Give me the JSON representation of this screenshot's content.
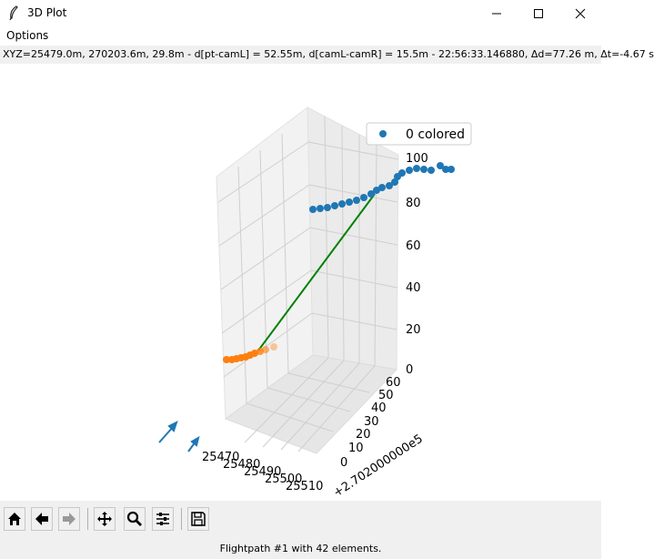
{
  "window": {
    "title": "3D Plot"
  },
  "menu": {
    "options_label": "Options"
  },
  "status": {
    "text": "XYZ=25479.0m, 270203.6m, 29.8m - d[pt-camL] = 52.55m, d[camL-camR] = 15.5m - 22:56:33.146880, Δd=77.26 m, Δt=-4.67 s"
  },
  "footer": {
    "message": "Flightpath #1 with 42 elements."
  },
  "toolbar": {
    "buttons": [
      "home",
      "back",
      "forward",
      "pan",
      "zoom",
      "configure-subplots",
      "save"
    ]
  },
  "chart_data": {
    "type": "scatter",
    "projection": "3d",
    "legend": {
      "entries": [
        "0 colored"
      ],
      "placement": "top-right"
    },
    "x_ticks": [
      "25470",
      "25480",
      "25490",
      "25500",
      "25510"
    ],
    "y_ticks": [
      "0",
      "10",
      "20",
      "30",
      "40",
      "50",
      "60"
    ],
    "y_offset_label": "+2.702000000e5",
    "z_ticks": [
      "0",
      "20",
      "40",
      "60",
      "80",
      "100"
    ],
    "series": [
      {
        "name": "0 colored",
        "color": "#1f77b4",
        "role": "flight path (high)"
      },
      {
        "color": "#ff7f0e",
        "role": "flight path (low)"
      },
      {
        "color": "#008000",
        "role": "connection line"
      }
    ],
    "grid": true
  }
}
